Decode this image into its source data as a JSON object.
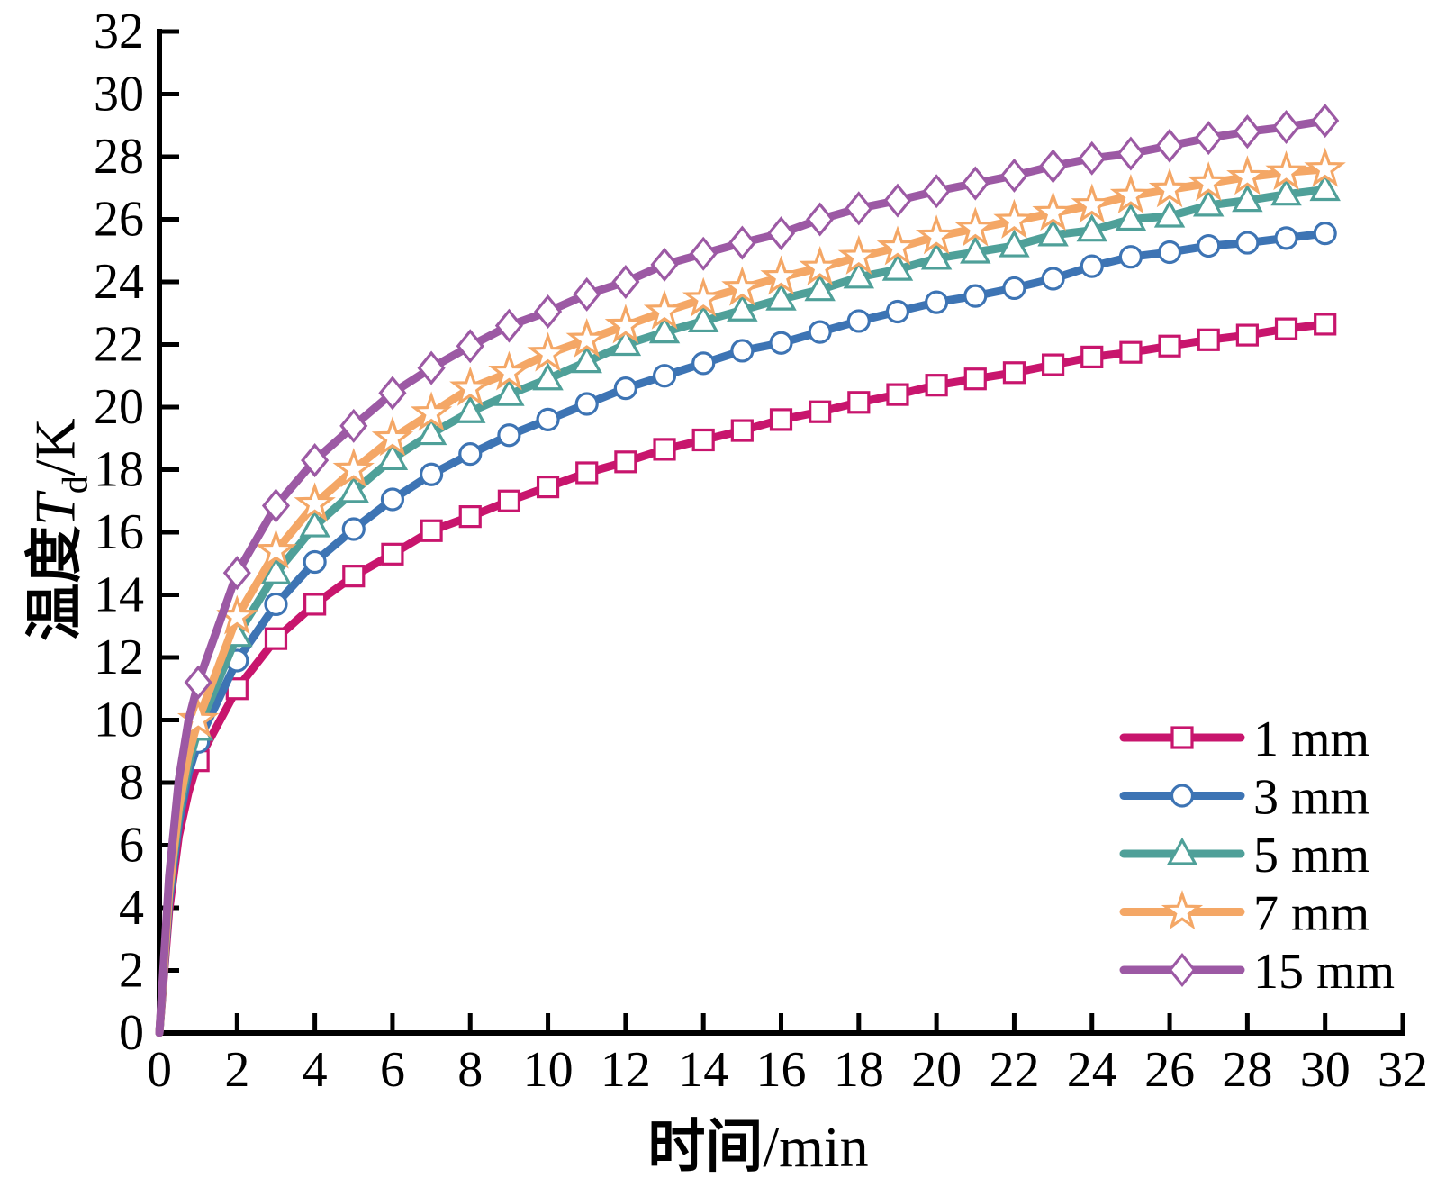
{
  "chart_data": {
    "type": "line",
    "title": "",
    "xlabel": {
      "cjk": "时间",
      "unit": "/min"
    },
    "ylabel": {
      "cjk": "温度",
      "var": "T",
      "sub": "d",
      "unit": "/K"
    },
    "xlim": [
      0,
      32
    ],
    "ylim": [
      0,
      32
    ],
    "xticks": [
      0,
      2,
      4,
      6,
      8,
      10,
      12,
      14,
      16,
      18,
      20,
      22,
      24,
      26,
      28,
      30,
      32
    ],
    "yticks": [
      0,
      2,
      4,
      6,
      8,
      10,
      12,
      14,
      16,
      18,
      20,
      22,
      24,
      26,
      28,
      30,
      32
    ],
    "grid": false,
    "legend_position": "lower right",
    "axis_color": "#000000",
    "marker_fill": "#ffffff",
    "x": [
      0,
      0.25,
      0.5,
      0.75,
      1,
      2,
      3,
      4,
      5,
      6,
      7,
      8,
      9,
      10,
      11,
      12,
      13,
      14,
      15,
      16,
      17,
      18,
      19,
      20,
      21,
      22,
      23,
      24,
      25,
      26,
      27,
      28,
      29,
      30
    ],
    "series": [
      {
        "name": "1 mm",
        "color": "#C8156D",
        "marker": "square",
        "values": [
          0,
          3.9,
          6.3,
          7.7,
          8.7,
          11.0,
          12.6,
          13.7,
          14.6,
          15.3,
          16.05,
          16.5,
          17.0,
          17.45,
          17.9,
          18.25,
          18.65,
          18.95,
          19.25,
          19.6,
          19.85,
          20.15,
          20.4,
          20.7,
          20.9,
          21.1,
          21.35,
          21.6,
          21.75,
          21.95,
          22.15,
          22.3,
          22.5,
          22.65
        ]
      },
      {
        "name": "3 mm",
        "color": "#3D74B4",
        "marker": "circle",
        "values": [
          0,
          4.2,
          6.7,
          8.3,
          9.3,
          11.9,
          13.7,
          15.05,
          16.1,
          17.05,
          17.85,
          18.5,
          19.1,
          19.6,
          20.1,
          20.6,
          21.0,
          21.4,
          21.8,
          22.05,
          22.4,
          22.75,
          23.05,
          23.35,
          23.55,
          23.8,
          24.1,
          24.5,
          24.8,
          24.95,
          25.15,
          25.25,
          25.4,
          25.55
        ]
      },
      {
        "name": "5 mm",
        "color": "#4FA099",
        "marker": "triangle",
        "values": [
          0,
          4.4,
          7.0,
          8.6,
          9.7,
          12.7,
          14.7,
          16.2,
          17.3,
          18.35,
          19.15,
          19.85,
          20.4,
          20.9,
          21.45,
          22.0,
          22.4,
          22.75,
          23.1,
          23.45,
          23.75,
          24.15,
          24.4,
          24.75,
          24.95,
          25.15,
          25.5,
          25.65,
          26.0,
          26.1,
          26.45,
          26.6,
          26.8,
          26.95
        ]
      },
      {
        "name": "7 mm",
        "color": "#F4A766",
        "marker": "star",
        "values": [
          0,
          4.5,
          7.2,
          8.9,
          10.0,
          13.3,
          15.4,
          16.9,
          18.0,
          19.0,
          19.8,
          20.6,
          21.1,
          21.7,
          22.15,
          22.6,
          23.05,
          23.45,
          23.8,
          24.15,
          24.45,
          24.8,
          25.1,
          25.45,
          25.7,
          25.95,
          26.2,
          26.45,
          26.75,
          26.95,
          27.15,
          27.35,
          27.5,
          27.6
        ]
      },
      {
        "name": "15 mm",
        "color": "#9C59A4",
        "marker": "diamond",
        "values": [
          0,
          5.0,
          8.1,
          10.0,
          11.2,
          14.7,
          16.85,
          18.3,
          19.4,
          20.45,
          21.25,
          21.95,
          22.6,
          23.05,
          23.6,
          24.0,
          24.55,
          24.9,
          25.25,
          25.55,
          26.0,
          26.35,
          26.6,
          26.9,
          27.15,
          27.4,
          27.7,
          27.95,
          28.1,
          28.35,
          28.6,
          28.8,
          28.95,
          29.15
        ]
      }
    ]
  }
}
